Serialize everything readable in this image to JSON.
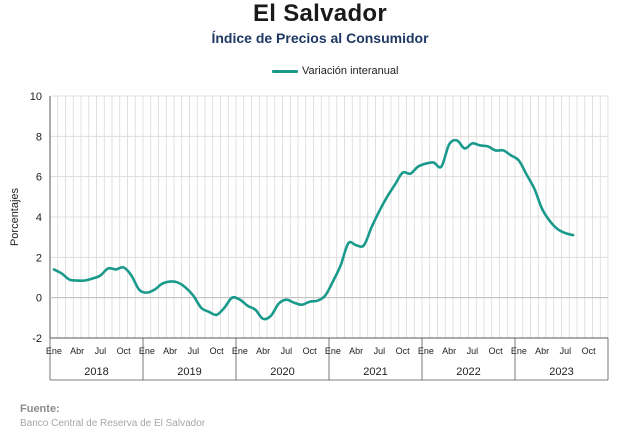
{
  "header": {
    "title": "El Salvador",
    "subtitle": "Índice de Precios al Consumidor"
  },
  "footer": {
    "source_label": "Fuente:",
    "source_text": "Banco Central de Reserva de El Salvador"
  },
  "colors": {
    "series": "#1a9a8c",
    "grid": "#d9d9d9",
    "axis": "#595959"
  },
  "chart_data": {
    "type": "line",
    "title": "El Salvador",
    "subtitle": "Índice de Precios al Consumidor",
    "ylabel": "Porcentajes",
    "ylim": [
      -2,
      10
    ],
    "yticks": [
      "-2",
      "0",
      "2",
      "4",
      "6",
      "8",
      "10"
    ],
    "grid": true,
    "legend_position": "top-center",
    "month_tick_labels": [
      "Ene",
      "Abr",
      "Jul",
      "Oct"
    ],
    "years": [
      "2018",
      "2019",
      "2020",
      "2021",
      "2022",
      "2023"
    ],
    "series": [
      {
        "name": "Variación interanual",
        "color": "#1a9a8c",
        "x": [
          "2018-01",
          "2018-02",
          "2018-03",
          "2018-04",
          "2018-05",
          "2018-06",
          "2018-07",
          "2018-08",
          "2018-09",
          "2018-10",
          "2018-11",
          "2018-12",
          "2019-01",
          "2019-02",
          "2019-03",
          "2019-04",
          "2019-05",
          "2019-06",
          "2019-07",
          "2019-08",
          "2019-09",
          "2019-10",
          "2019-11",
          "2019-12",
          "2020-01",
          "2020-02",
          "2020-03",
          "2020-04",
          "2020-05",
          "2020-06",
          "2020-07",
          "2020-08",
          "2020-09",
          "2020-10",
          "2020-11",
          "2020-12",
          "2021-01",
          "2021-02",
          "2021-03",
          "2021-04",
          "2021-05",
          "2021-06",
          "2021-07",
          "2021-08",
          "2021-09",
          "2021-10",
          "2021-11",
          "2021-12",
          "2022-01",
          "2022-02",
          "2022-03",
          "2022-04",
          "2022-05",
          "2022-06",
          "2022-07",
          "2022-08",
          "2022-09",
          "2022-10",
          "2022-11",
          "2022-12",
          "2023-01",
          "2023-02",
          "2023-03",
          "2023-04",
          "2023-05",
          "2023-06",
          "2023-07",
          "2023-08"
        ],
        "values": [
          1.4,
          1.2,
          0.9,
          0.85,
          0.85,
          0.95,
          1.1,
          1.45,
          1.4,
          1.5,
          1.1,
          0.4,
          0.25,
          0.4,
          0.7,
          0.8,
          0.75,
          0.5,
          0.1,
          -0.5,
          -0.7,
          -0.85,
          -0.5,
          0.0,
          -0.1,
          -0.4,
          -0.6,
          -1.05,
          -0.9,
          -0.3,
          -0.1,
          -0.25,
          -0.35,
          -0.2,
          -0.15,
          0.1,
          0.8,
          1.6,
          2.7,
          2.6,
          2.6,
          3.5,
          4.3,
          5.0,
          5.6,
          6.2,
          6.15,
          6.5,
          6.65,
          6.7,
          6.5,
          7.6,
          7.8,
          7.4,
          7.65,
          7.55,
          7.5,
          7.3,
          7.3,
          7.05,
          6.8,
          6.1,
          5.4,
          4.4,
          3.8,
          3.4,
          3.2,
          3.1
        ]
      }
    ]
  }
}
